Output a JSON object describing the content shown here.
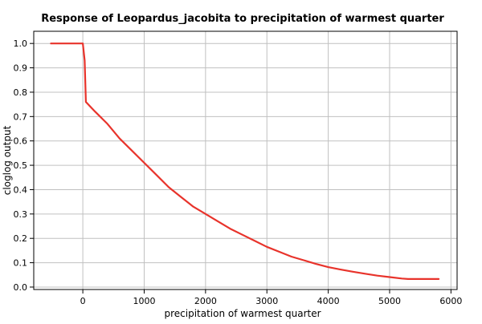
{
  "chart_data": {
    "type": "line",
    "title": "Response of Leopardus_jacobita to precipitation of warmest quarter",
    "xlabel": "precipitation of warmest quarter",
    "ylabel": "cloglog output",
    "xlim": [
      -800,
      6100
    ],
    "ylim": [
      -0.01,
      1.05
    ],
    "xticks": [
      0,
      1000,
      2000,
      3000,
      4000,
      5000,
      6000
    ],
    "yticks": [
      0.0,
      0.1,
      0.2,
      0.3,
      0.4,
      0.5,
      0.6,
      0.7,
      0.8,
      0.9,
      1.0
    ],
    "xtick_labels": [
      "0",
      "1000",
      "2000",
      "3000",
      "4000",
      "5000",
      "6000"
    ],
    "ytick_labels": [
      "0.0",
      "0.1",
      "0.2",
      "0.3",
      "0.4",
      "0.5",
      "0.6",
      "0.7",
      "0.8",
      "0.9",
      "1.0"
    ],
    "grid": true,
    "color": "#e8332b",
    "series": [
      {
        "x": [
          -520,
          -100,
          0,
          30,
          50,
          200,
          400,
          600,
          800,
          1000,
          1200,
          1400,
          1600,
          1800,
          2000,
          2200,
          2400,
          2600,
          2800,
          3000,
          3200,
          3400,
          3600,
          3800,
          4000,
          4200,
          4400,
          4600,
          4800,
          5000,
          5200,
          5300,
          5500,
          5800
        ],
        "y": [
          1.0,
          1.0,
          1.0,
          0.93,
          0.76,
          0.72,
          0.67,
          0.61,
          0.56,
          0.51,
          0.46,
          0.41,
          0.37,
          0.33,
          0.3,
          0.27,
          0.24,
          0.215,
          0.19,
          0.165,
          0.145,
          0.125,
          0.11,
          0.095,
          0.082,
          0.072,
          0.063,
          0.055,
          0.047,
          0.041,
          0.035,
          0.033,
          0.033,
          0.033
        ]
      }
    ]
  }
}
